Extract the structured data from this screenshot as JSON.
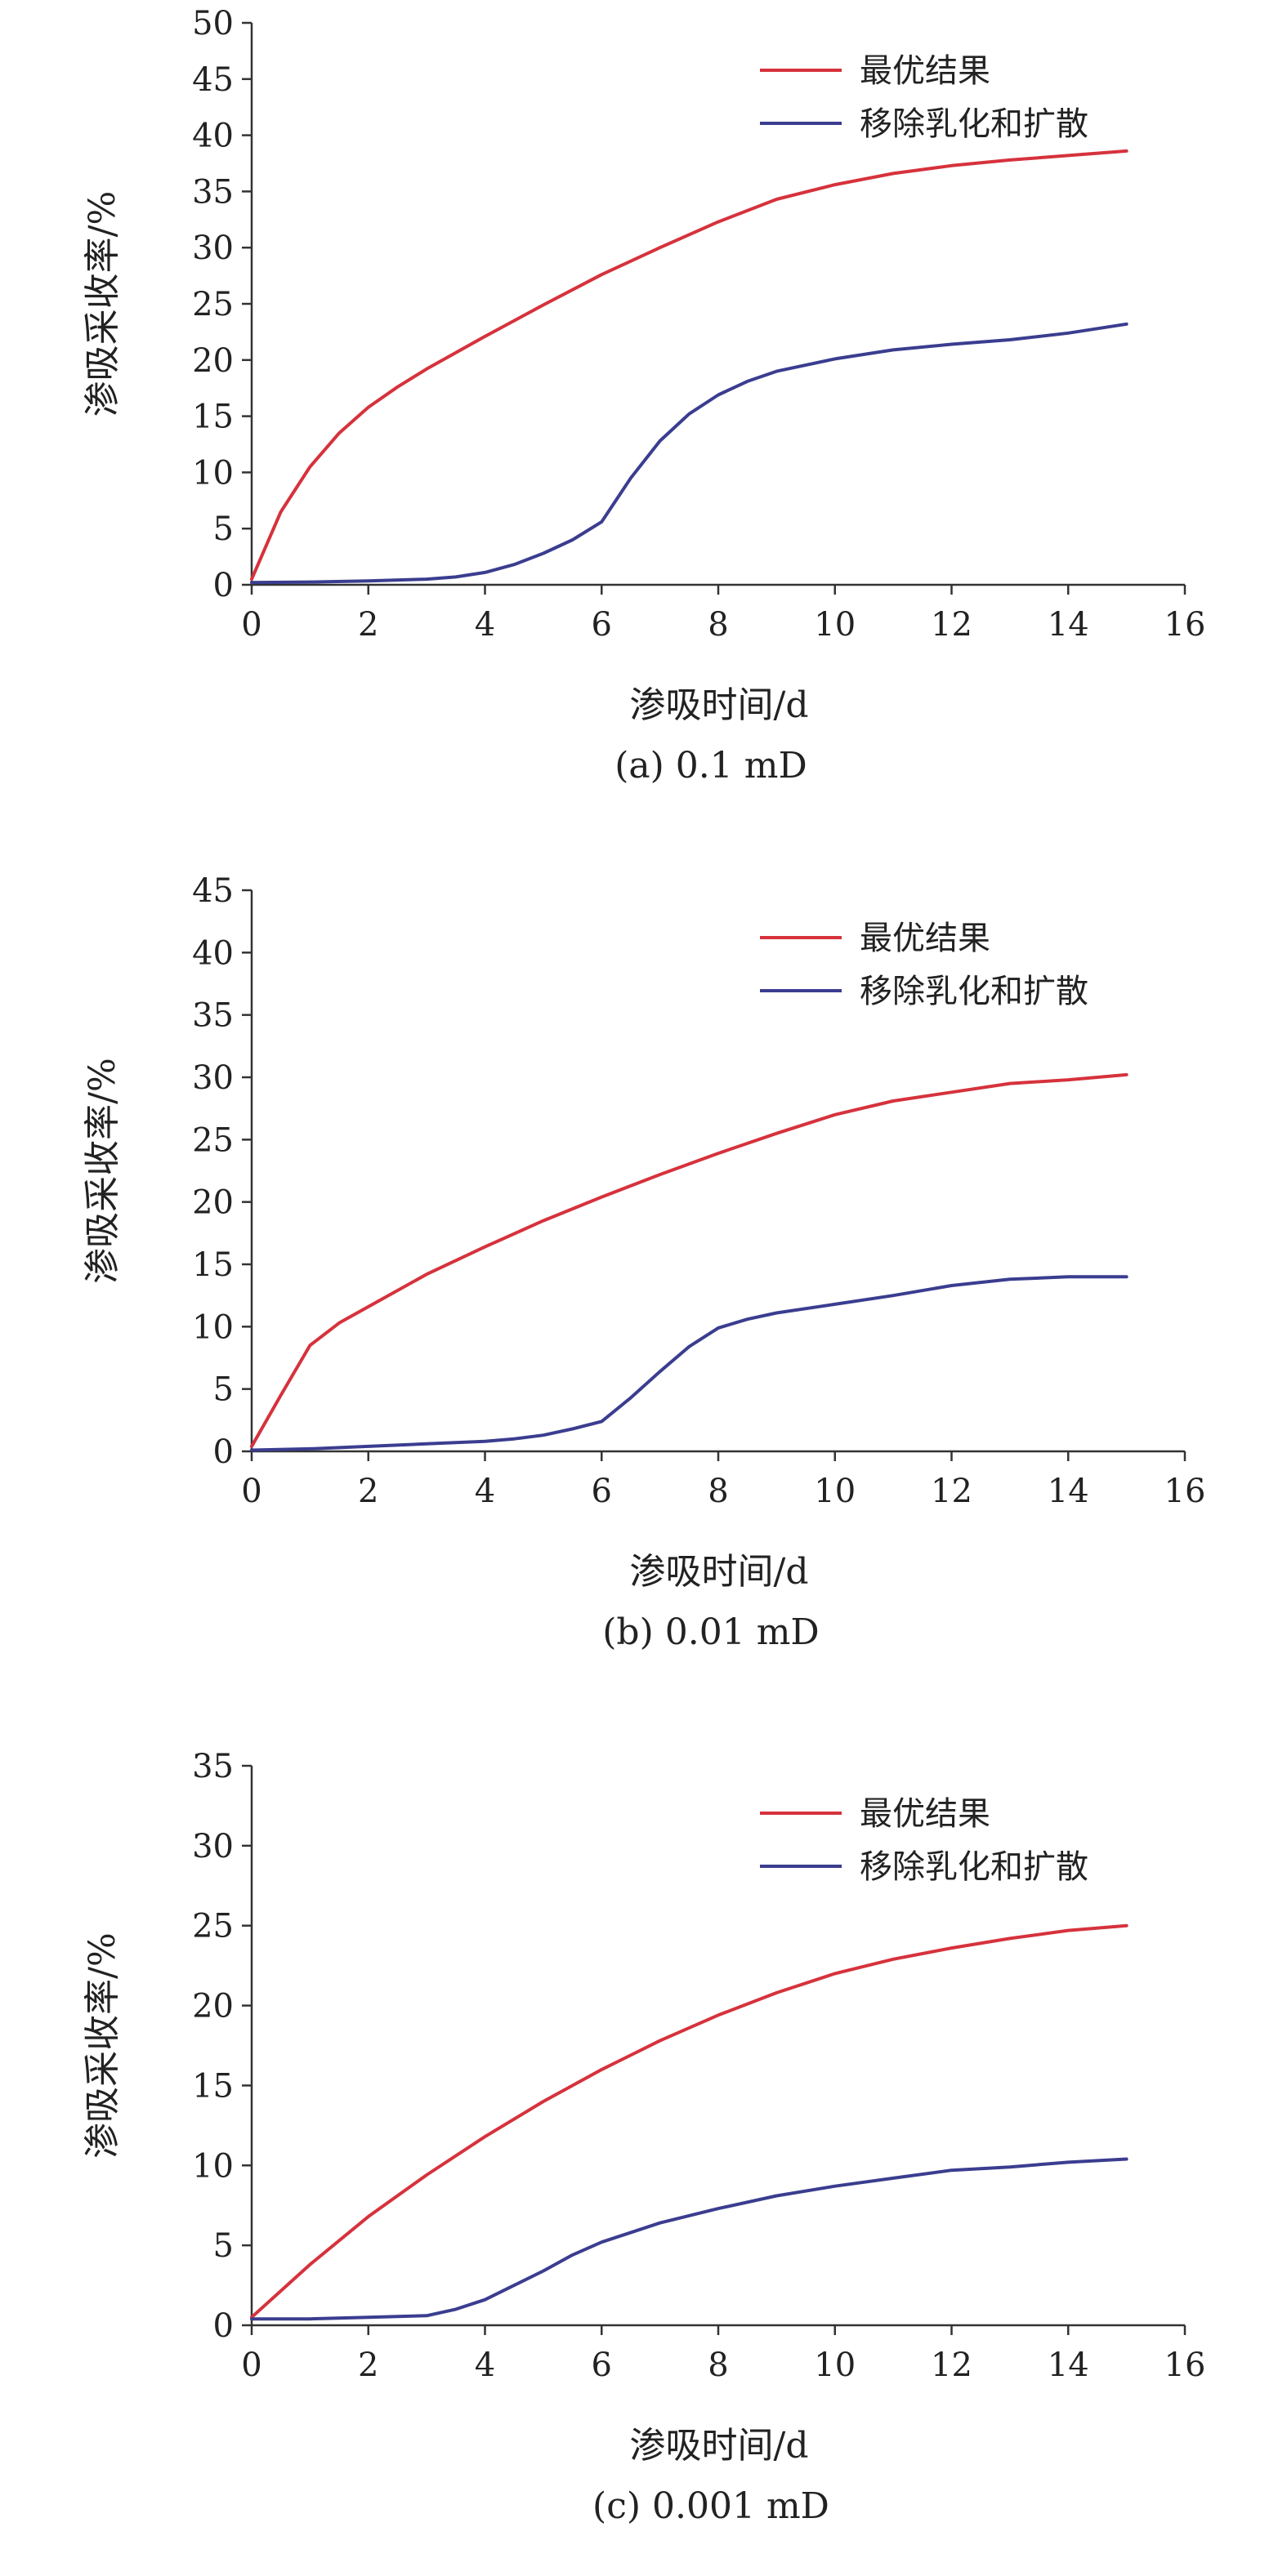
{
  "chart_data": [
    {
      "type": "line",
      "caption": "(a) 0.1 mD",
      "xlabel": "渗吸时间/d",
      "ylabel": "渗吸采收率/%",
      "xlim": [
        0,
        16
      ],
      "ylim": [
        0,
        50
      ],
      "xticks": [
        0,
        2,
        4,
        6,
        8,
        10,
        12,
        14,
        16
      ],
      "yticks": [
        0,
        5,
        10,
        15,
        20,
        25,
        30,
        35,
        40,
        45,
        50
      ],
      "legend_position": "top-right",
      "series": [
        {
          "name": "最优结果",
          "color": "#d6323c",
          "x": [
            0,
            0.5,
            1,
            1.5,
            2,
            2.5,
            3,
            4,
            5,
            6,
            7,
            8,
            9,
            10,
            11,
            12,
            13,
            14,
            15
          ],
          "y": [
            0.5,
            6.5,
            10.5,
            13.5,
            15.8,
            17.6,
            19.2,
            22.1,
            24.9,
            27.6,
            30.0,
            32.3,
            34.3,
            35.6,
            36.6,
            37.3,
            37.8,
            38.2,
            38.6
          ]
        },
        {
          "name": "移除乳化和扩散",
          "color": "#3a3d8f",
          "x": [
            0,
            1,
            2,
            3,
            3.5,
            4,
            4.5,
            5,
            5.5,
            6,
            6.5,
            7,
            7.5,
            8,
            8.5,
            9,
            10,
            11,
            12,
            13,
            14,
            15
          ],
          "y": [
            0.2,
            0.25,
            0.35,
            0.5,
            0.7,
            1.1,
            1.8,
            2.8,
            4.0,
            5.6,
            9.5,
            12.8,
            15.2,
            16.9,
            18.1,
            19.0,
            20.1,
            20.9,
            21.4,
            21.8,
            22.4,
            23.2
          ]
        }
      ]
    },
    {
      "type": "line",
      "caption": "(b) 0.01 mD",
      "xlabel": "渗吸时间/d",
      "ylabel": "渗吸采收率/%",
      "xlim": [
        0,
        16
      ],
      "ylim": [
        0,
        45
      ],
      "xticks": [
        0,
        2,
        4,
        6,
        8,
        10,
        12,
        14,
        16
      ],
      "yticks": [
        0,
        5,
        10,
        15,
        20,
        25,
        30,
        35,
        40,
        45
      ],
      "legend_position": "top-right",
      "series": [
        {
          "name": "最优结果",
          "color": "#d6323c",
          "x": [
            0,
            0.5,
            1,
            1.5,
            2,
            3,
            4,
            5,
            6,
            7,
            8,
            9,
            10,
            11,
            12,
            13,
            14,
            15
          ],
          "y": [
            0.4,
            4.5,
            8.5,
            10.3,
            11.6,
            14.2,
            16.4,
            18.5,
            20.4,
            22.2,
            23.9,
            25.5,
            27.0,
            28.1,
            28.8,
            29.5,
            29.8,
            30.2
          ]
        },
        {
          "name": "移除乳化和扩散",
          "color": "#3a3d8f",
          "x": [
            0,
            1,
            2,
            3,
            4,
            4.5,
            5,
            5.5,
            6,
            6.5,
            7,
            7.5,
            8,
            8.5,
            9,
            10,
            11,
            12,
            13,
            14,
            15
          ],
          "y": [
            0.1,
            0.2,
            0.4,
            0.6,
            0.8,
            1.0,
            1.3,
            1.8,
            2.4,
            4.3,
            6.4,
            8.4,
            9.9,
            10.6,
            11.1,
            11.8,
            12.5,
            13.3,
            13.8,
            14.0,
            14.0
          ]
        }
      ]
    },
    {
      "type": "line",
      "caption": "(c) 0.001 mD",
      "xlabel": "渗吸时间/d",
      "ylabel": "渗吸采收率/%",
      "xlim": [
        0,
        16
      ],
      "ylim": [
        0,
        35
      ],
      "xticks": [
        0,
        2,
        4,
        6,
        8,
        10,
        12,
        14,
        16
      ],
      "yticks": [
        0,
        5,
        10,
        15,
        20,
        25,
        30,
        35
      ],
      "legend_position": "top-right",
      "series": [
        {
          "name": "最优结果",
          "color": "#d6323c",
          "x": [
            0,
            1,
            2,
            3,
            4,
            5,
            6,
            7,
            8,
            9,
            10,
            11,
            12,
            13,
            14,
            15
          ],
          "y": [
            0.5,
            3.8,
            6.8,
            9.4,
            11.8,
            14.0,
            16.0,
            17.8,
            19.4,
            20.8,
            22.0,
            22.9,
            23.6,
            24.2,
            24.7,
            25.0
          ]
        },
        {
          "name": "移除乳化和扩散",
          "color": "#3a3d8f",
          "x": [
            0,
            1,
            2,
            3,
            3.5,
            4,
            4.5,
            5,
            5.5,
            6,
            7,
            8,
            9,
            10,
            11,
            12,
            13,
            14,
            15
          ],
          "y": [
            0.4,
            0.4,
            0.5,
            0.6,
            1.0,
            1.6,
            2.5,
            3.4,
            4.4,
            5.2,
            6.4,
            7.3,
            8.1,
            8.7,
            9.2,
            9.7,
            9.9,
            10.2,
            10.4
          ]
        }
      ]
    }
  ]
}
